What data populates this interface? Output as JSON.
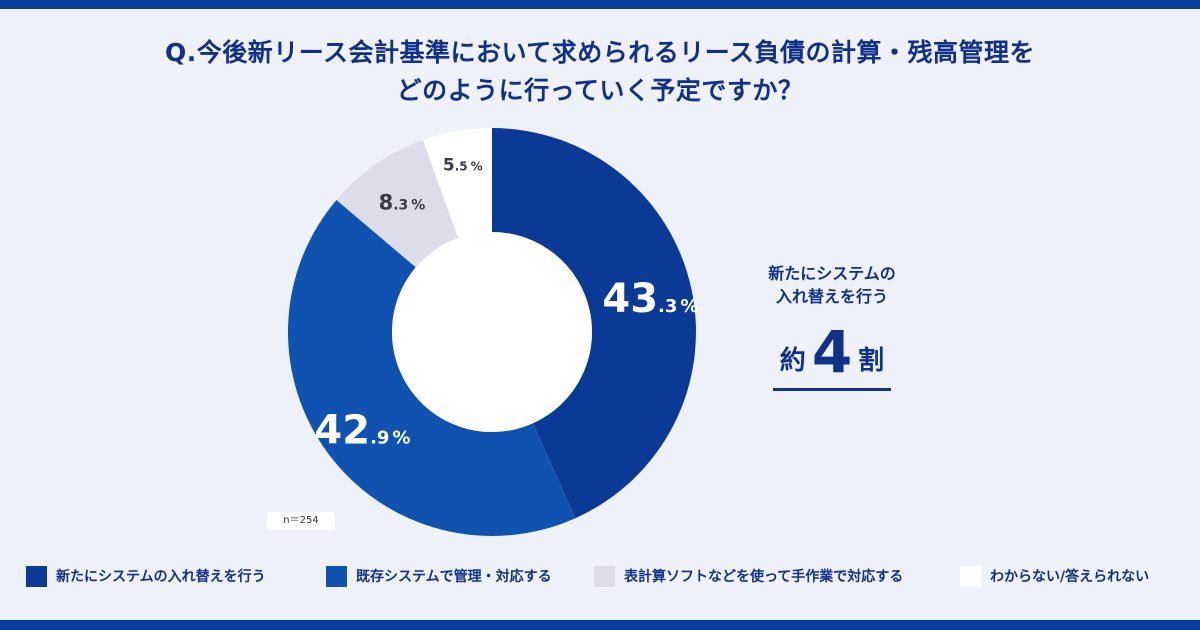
{
  "title": {
    "line1": "Q.今後新リース会計基準において求められるリース負債の計算・残高管理を",
    "line2": "どのように行っていく予定ですか？"
  },
  "sample_label": "n＝254",
  "callout": {
    "line1": "新たにシステムの",
    "line2": "入れ替えを行う",
    "prefix": "約",
    "number": "4",
    "suffix": "割"
  },
  "colors": {
    "series1": "#0b3a96",
    "series2": "#1052b0",
    "series3": "#dcdde8",
    "series4": "#ffffff",
    "accent": "#10308a"
  },
  "chart_data": {
    "type": "pie",
    "variant": "donut",
    "unit": "%",
    "legend_position": "bottom",
    "slices": [
      {
        "label": "新たにシステムの入れ替えを行う",
        "value": 43.3,
        "int": "43",
        "dec": ".3",
        "unit": "%"
      },
      {
        "label": "既存システムで管理・対応する",
        "value": 42.9,
        "int": "42",
        "dec": ".9",
        "unit": "%"
      },
      {
        "label": "表計算ソフトなどを使って手作業で対応する",
        "value": 8.3,
        "int": "8",
        "dec": ".3",
        "unit": "%"
      },
      {
        "label": "わからない/答えられない",
        "value": 5.5,
        "int": "5",
        "dec": ".5",
        "unit": "%"
      }
    ]
  }
}
